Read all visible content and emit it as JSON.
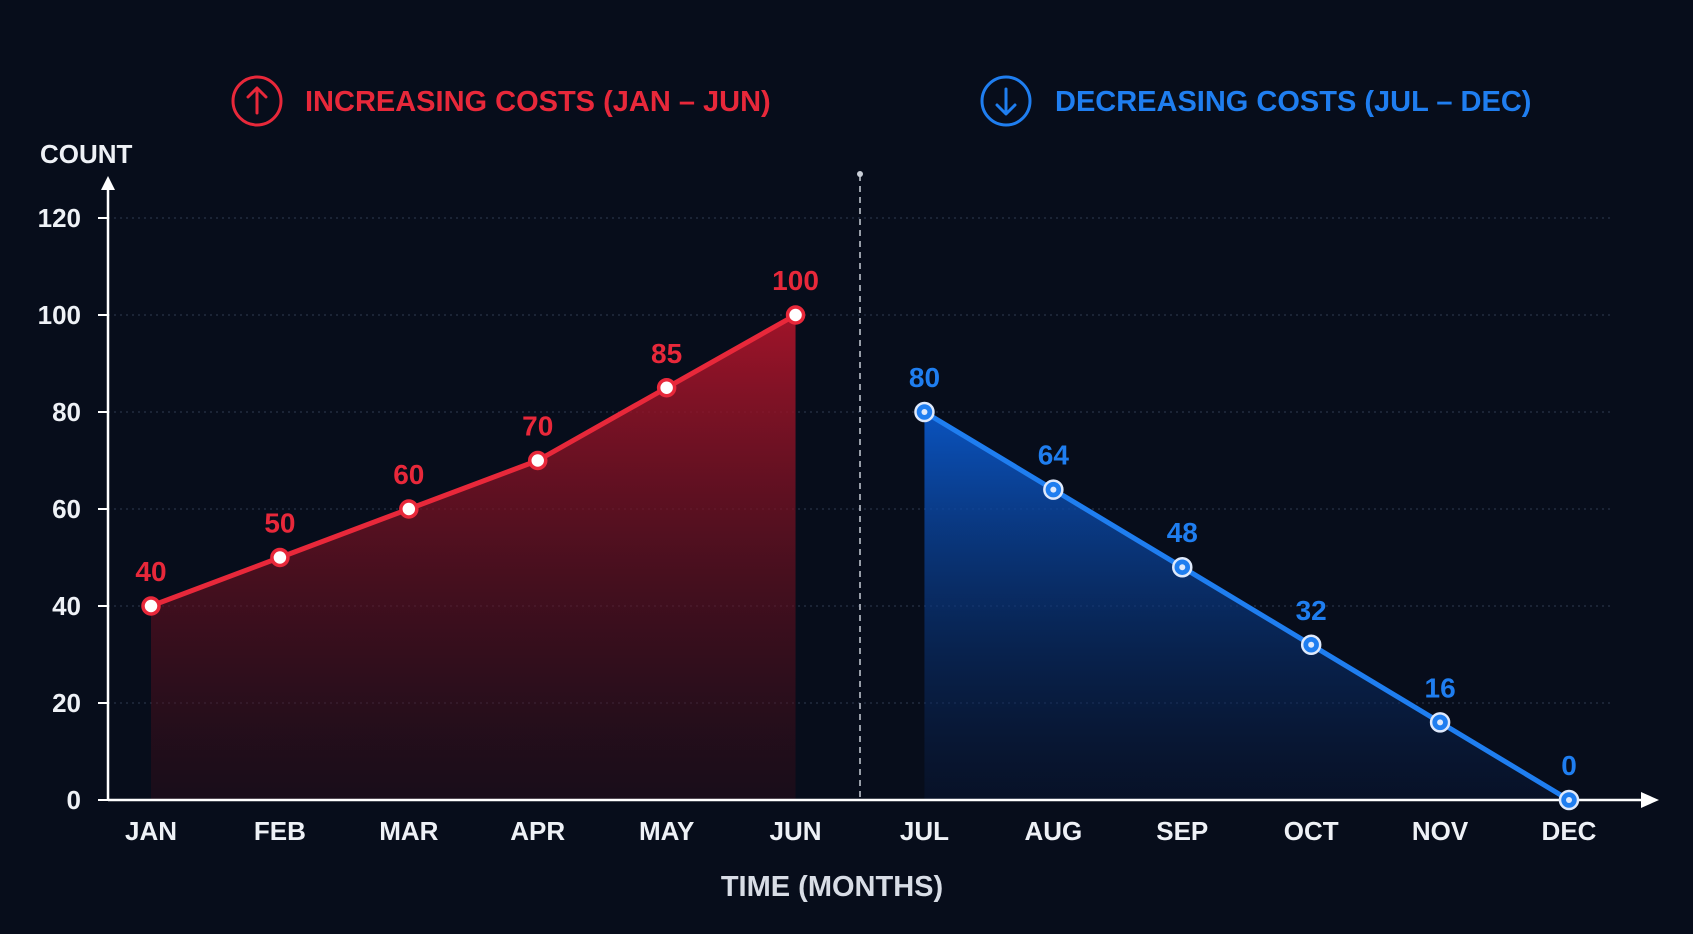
{
  "legend": {
    "increasing_label": "INCREASING COSTS (JAN – JUN)",
    "increasing_icon": "arrow-up-circle-icon",
    "decreasing_label": "DECREASING COSTS (JUL – DEC)",
    "decreasing_icon": "arrow-down-circle-icon"
  },
  "colors": {
    "background": "#070d1b",
    "increasing": "#e8283a",
    "decreasing": "#1f7ef0",
    "axis": "#ffffff",
    "text": "#eef1f6",
    "grid": "#3a4660"
  },
  "chart_data": {
    "type": "area",
    "categories": [
      "JAN",
      "FEB",
      "MAR",
      "APR",
      "MAY",
      "JUN",
      "JUL",
      "AUG",
      "SEP",
      "OCT",
      "NOV",
      "DEC"
    ],
    "series": [
      {
        "name": "INCREASING COSTS (JAN – JUN)",
        "color": "#e8283a",
        "x": [
          "JAN",
          "FEB",
          "MAR",
          "APR",
          "MAY",
          "JUN"
        ],
        "values": [
          40,
          50,
          60,
          70,
          85,
          100
        ],
        "value_labels": [
          "40",
          "50",
          "60",
          "70",
          "85",
          "100"
        ]
      },
      {
        "name": "DECREASING COSTS (JUL – DEC)",
        "color": "#1f7ef0",
        "x": [
          "JUL",
          "AUG",
          "SEP",
          "OCT",
          "NOV",
          "DEC"
        ],
        "values": [
          80,
          64,
          48,
          32,
          16,
          0
        ],
        "value_labels": [
          "80",
          "64",
          "48",
          "32",
          "16",
          "0"
        ]
      }
    ],
    "xlabel": "TIME (MONTHS)",
    "ylabel": "COUNT",
    "ylim": [
      0,
      120
    ],
    "yticks": [
      0,
      20,
      40,
      60,
      80,
      100,
      120
    ],
    "ytick_labels": [
      "0",
      "20",
      "40",
      "60",
      "80",
      "100",
      "120"
    ],
    "grid": true,
    "divider_between": [
      "JUN",
      "JUL"
    ],
    "legend_position": "top"
  }
}
